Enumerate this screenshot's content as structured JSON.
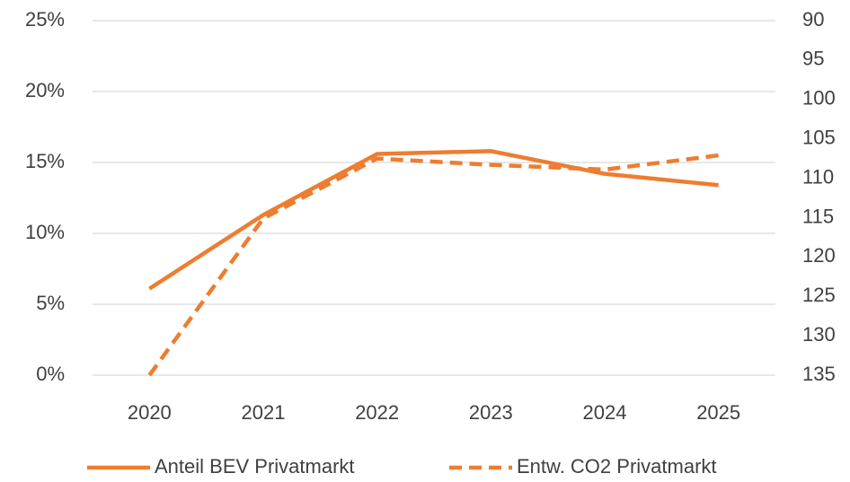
{
  "chart_data": {
    "type": "line",
    "categories": [
      "2020",
      "2021",
      "2022",
      "2023",
      "2024",
      "2025"
    ],
    "series": [
      {
        "name": "Anteil BEV Privatmarkt",
        "color": "#ED7D31",
        "dash": false,
        "values": [
          6.1,
          11.3,
          15.6,
          15.8,
          14.2,
          13.4
        ]
      },
      {
        "name": "Entw. CO2 Privatmarkt",
        "color": "#ED7D31",
        "dash": true,
        "axis": "y2",
        "values": [
          135,
          115.1,
          107.5,
          108.3,
          108.9,
          107.1
        ]
      }
    ],
    "ylim": [
      0,
      25
    ],
    "yticks": [
      {
        "value": 0,
        "label": "0%"
      },
      {
        "value": 5,
        "label": "5%"
      },
      {
        "value": 10,
        "label": "10%"
      },
      {
        "value": 15,
        "label": "15%"
      },
      {
        "value": 20,
        "label": "20%"
      },
      {
        "value": 25,
        "label": "25%"
      }
    ],
    "y2lim": [
      90,
      135
    ],
    "y2_inverted": true,
    "y2ticks": [
      90,
      95,
      100,
      105,
      110,
      115,
      120,
      125,
      130,
      135
    ],
    "grid": true,
    "legend": "bottom"
  }
}
